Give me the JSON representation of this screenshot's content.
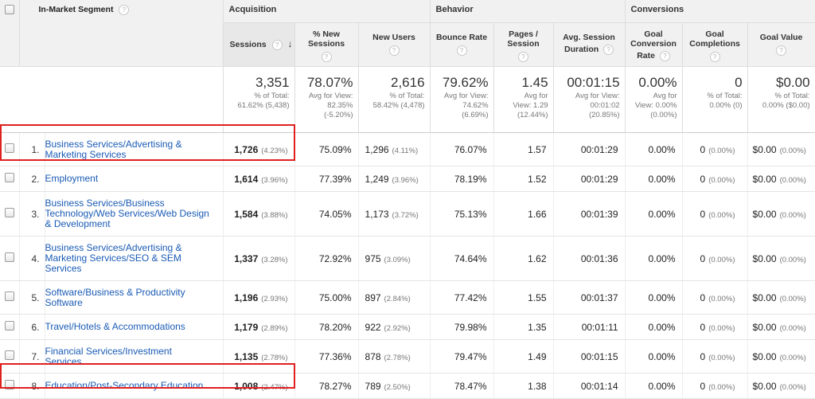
{
  "header": {
    "dimension": "In-Market Segment",
    "groups": {
      "acquisition": "Acquisition",
      "behavior": "Behavior",
      "conversions": "Conversions"
    },
    "columns": {
      "sessions": "Sessions",
      "new_sessions": [
        "% New",
        "Sessions"
      ],
      "new_users": "New Users",
      "bounce_rate": "Bounce Rate",
      "pages_session": [
        "Pages /",
        "Session"
      ],
      "avg_duration": [
        "Avg. Session",
        "Duration"
      ],
      "goal_conv_rate": [
        "Goal",
        "Conversion",
        "Rate"
      ],
      "goal_completions": [
        "Goal",
        "Completions"
      ],
      "goal_value": "Goal Value"
    },
    "help_glyph": "?",
    "sort_arrow": "↓"
  },
  "totals": {
    "sessions": {
      "value": "3,351",
      "sub": [
        "% of Total:",
        "61.62% (5,438)"
      ]
    },
    "new_sessions": {
      "value": "78.07%",
      "sub": [
        "Avg for View:",
        "82.35%",
        "(-5.20%)"
      ]
    },
    "new_users": {
      "value": "2,616",
      "sub": [
        "% of Total:",
        "58.42% (4,478)"
      ]
    },
    "bounce_rate": {
      "value": "79.62%",
      "sub": [
        "Avg for View:",
        "74.62%",
        "(6.69%)"
      ]
    },
    "pages_session": {
      "value": "1.45",
      "sub": [
        "Avg for",
        "View: 1.29",
        "(12.44%)"
      ]
    },
    "avg_duration": {
      "value": "00:01:15",
      "sub": [
        "Avg for View:",
        "00:01:02",
        "(20.85%)"
      ]
    },
    "goal_conv_rate": {
      "value": "0.00%",
      "sub": [
        "Avg for",
        "View: 0.00%",
        "(0.00%)"
      ]
    },
    "goal_completions": {
      "value": "0",
      "sub": [
        "% of Total:",
        "0.00% (0)"
      ]
    },
    "goal_value": {
      "value": "$0.00",
      "sub": [
        "% of Total:",
        "0.00% ($0.00)"
      ]
    }
  },
  "rows": [
    {
      "index": "1.",
      "segment": [
        "Business Services/Advertising &",
        "Marketing Services"
      ],
      "sessions": "1,726",
      "sessions_pct": "(4.23%)",
      "new_sessions": "75.09%",
      "new_users": "1,296",
      "new_users_pct": "(4.11%)",
      "bounce_rate": "76.07%",
      "pages_session": "1.57",
      "avg_duration": "00:01:29",
      "goal_conv_rate": "0.00%",
      "goal_completions": "0",
      "goal_completions_pct": "(0.00%)",
      "goal_value": "$0.00",
      "goal_value_pct": "(0.00%)"
    },
    {
      "index": "2.",
      "segment": [
        "Employment"
      ],
      "sessions": "1,614",
      "sessions_pct": "(3.96%)",
      "new_sessions": "77.39%",
      "new_users": "1,249",
      "new_users_pct": "(3.96%)",
      "bounce_rate": "78.19%",
      "pages_session": "1.52",
      "avg_duration": "00:01:29",
      "goal_conv_rate": "0.00%",
      "goal_completions": "0",
      "goal_completions_pct": "(0.00%)",
      "goal_value": "$0.00",
      "goal_value_pct": "(0.00%)"
    },
    {
      "index": "3.",
      "segment": [
        "Business Services/Business",
        "Technology/Web Services/Web Design",
        "& Development"
      ],
      "sessions": "1,584",
      "sessions_pct": "(3.88%)",
      "new_sessions": "74.05%",
      "new_users": "1,173",
      "new_users_pct": "(3.72%)",
      "bounce_rate": "75.13%",
      "pages_session": "1.66",
      "avg_duration": "00:01:39",
      "goal_conv_rate": "0.00%",
      "goal_completions": "0",
      "goal_completions_pct": "(0.00%)",
      "goal_value": "$0.00",
      "goal_value_pct": "(0.00%)"
    },
    {
      "index": "4.",
      "segment": [
        "Business Services/Advertising &",
        "Marketing Services/SEO & SEM",
        "Services"
      ],
      "sessions": "1,337",
      "sessions_pct": "(3.28%)",
      "new_sessions": "72.92%",
      "new_users": "975",
      "new_users_pct": "(3.09%)",
      "bounce_rate": "74.64%",
      "pages_session": "1.62",
      "avg_duration": "00:01:36",
      "goal_conv_rate": "0.00%",
      "goal_completions": "0",
      "goal_completions_pct": "(0.00%)",
      "goal_value": "$0.00",
      "goal_value_pct": "(0.00%)"
    },
    {
      "index": "5.",
      "segment": [
        "Software/Business & Productivity",
        "Software"
      ],
      "sessions": "1,196",
      "sessions_pct": "(2.93%)",
      "new_sessions": "75.00%",
      "new_users": "897",
      "new_users_pct": "(2.84%)",
      "bounce_rate": "77.42%",
      "pages_session": "1.55",
      "avg_duration": "00:01:37",
      "goal_conv_rate": "0.00%",
      "goal_completions": "0",
      "goal_completions_pct": "(0.00%)",
      "goal_value": "$0.00",
      "goal_value_pct": "(0.00%)"
    },
    {
      "index": "6.",
      "segment": [
        "Travel/Hotels & Accommodations"
      ],
      "sessions": "1,179",
      "sessions_pct": "(2.89%)",
      "new_sessions": "78.20%",
      "new_users": "922",
      "new_users_pct": "(2.92%)",
      "bounce_rate": "79.98%",
      "pages_session": "1.35",
      "avg_duration": "00:01:11",
      "goal_conv_rate": "0.00%",
      "goal_completions": "0",
      "goal_completions_pct": "(0.00%)",
      "goal_value": "$0.00",
      "goal_value_pct": "(0.00%)"
    },
    {
      "index": "7.",
      "segment": [
        "Financial Services/Investment",
        "Services"
      ],
      "sessions": "1,135",
      "sessions_pct": "(2.78%)",
      "new_sessions": "77.36%",
      "new_users": "878",
      "new_users_pct": "(2.78%)",
      "bounce_rate": "79.47%",
      "pages_session": "1.49",
      "avg_duration": "00:01:15",
      "goal_conv_rate": "0.00%",
      "goal_completions": "0",
      "goal_completions_pct": "(0.00%)",
      "goal_value": "$0.00",
      "goal_value_pct": "(0.00%)"
    },
    {
      "index": "8.",
      "segment": [
        "Education/Post-Secondary Education"
      ],
      "sessions": "1,008",
      "sessions_pct": "(2.47%)",
      "new_sessions": "78.27%",
      "new_users": "789",
      "new_users_pct": "(2.50%)",
      "bounce_rate": "78.47%",
      "pages_session": "1.38",
      "avg_duration": "00:01:14",
      "goal_conv_rate": "0.00%",
      "goal_completions": "0",
      "goal_completions_pct": "(0.00%)",
      "goal_value": "$0.00",
      "goal_value_pct": "(0.00%)"
    }
  ],
  "highlight_color": "#e02020",
  "link_color": "#1a5bb5"
}
